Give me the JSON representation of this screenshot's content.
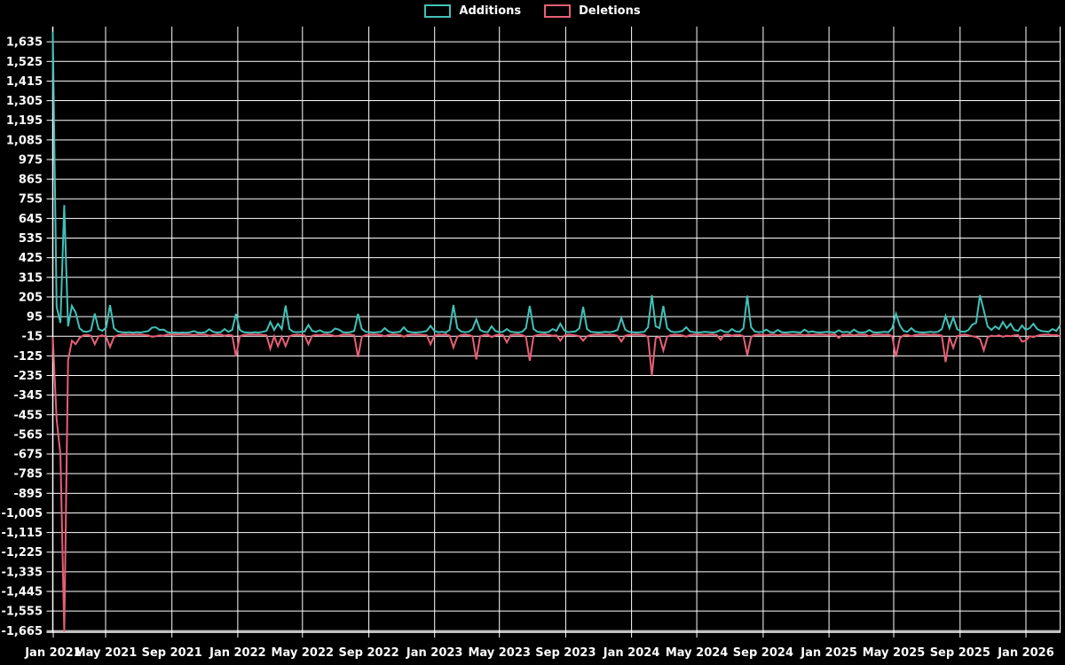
{
  "legend": {
    "items": [
      {
        "label": "Additions",
        "color": "#41c1b8"
      },
      {
        "label": "Deletions",
        "color": "#e85f75"
      }
    ]
  },
  "chart_data": {
    "type": "line",
    "title": "",
    "xlabel": "",
    "ylabel": "",
    "background": "#000000",
    "grid_color": "#ffffff",
    "text_color": "#ffffff",
    "grid": true,
    "legend_position": "top",
    "x_unit": "week",
    "x_range": [
      "Jan 2021",
      "Feb 2026"
    ],
    "ylim": [
      -1665,
      1635
    ],
    "y_tick_step": 110,
    "x_ticks": [
      "Jan 2021",
      "May 2021",
      "Sep 2021",
      "Jan 2022",
      "May 2022",
      "Sep 2022",
      "Jan 2023",
      "May 2023",
      "Sep 2023",
      "Jan 2024",
      "May 2024",
      "Sep 2024",
      "Jan 2025",
      "May 2025",
      "Sep 2025",
      "Jan 2026"
    ],
    "y_ticks": [
      "1,635",
      "1,525",
      "1,415",
      "1,305",
      "1,195",
      "1,085",
      "975",
      "865",
      "755",
      "645",
      "535",
      "425",
      "315",
      "205",
      "95",
      "-15",
      "-125",
      "-235",
      "-345",
      "-455",
      "-565",
      "-675",
      "-785",
      "-895",
      "-1,005",
      "-1,115",
      "-1,225",
      "-1,335",
      "-1,445",
      "-1,555",
      "-1,665"
    ],
    "series": [
      {
        "name": "Additions",
        "color": "#41c1b8",
        "values": [
          1690,
          150,
          60,
          720,
          40,
          155,
          117,
          30,
          12,
          10,
          18,
          112,
          25,
          15,
          35,
          160,
          30,
          12,
          8,
          6,
          8,
          5,
          8,
          6,
          10,
          14,
          33,
          35,
          20,
          22,
          8,
          5,
          6,
          4,
          6,
          5,
          8,
          14,
          6,
          5,
          8,
          24,
          10,
          6,
          8,
          25,
          10,
          20,
          110,
          20,
          8,
          6,
          5,
          8,
          6,
          10,
          15,
          65,
          20,
          55,
          25,
          157,
          25,
          10,
          8,
          10,
          12,
          48,
          15,
          10,
          18,
          8,
          6,
          10,
          28,
          22,
          8,
          6,
          8,
          15,
          110,
          25,
          10,
          8,
          6,
          8,
          10,
          30,
          12,
          6,
          8,
          10,
          35,
          12,
          8,
          6,
          8,
          10,
          15,
          43,
          15,
          8,
          10,
          6,
          20,
          160,
          30,
          12,
          8,
          10,
          25,
          80,
          20,
          10,
          8,
          40,
          15,
          8,
          10,
          25,
          10,
          8,
          6,
          10,
          30,
          155,
          25,
          10,
          8,
          6,
          10,
          25,
          15,
          55,
          18,
          8,
          10,
          12,
          30,
          150,
          25,
          10,
          8,
          6,
          8,
          10,
          8,
          12,
          20,
          88,
          22,
          10,
          8,
          6,
          8,
          10,
          35,
          215,
          40,
          30,
          155,
          30,
          12,
          8,
          10,
          15,
          35,
          12,
          8,
          6,
          8,
          10,
          8,
          6,
          10,
          20,
          10,
          8,
          25,
          12,
          10,
          30,
          212,
          35,
          12,
          8,
          10,
          22,
          8,
          6,
          20,
          8,
          6,
          8,
          10,
          8,
          6,
          22,
          8,
          12,
          8,
          6,
          8,
          10,
          8,
          6,
          18,
          8,
          10,
          6,
          22,
          8,
          6,
          8,
          20,
          8,
          6,
          8,
          10,
          8,
          30,
          110,
          45,
          15,
          10,
          30,
          12,
          8,
          6,
          8,
          10,
          8,
          10,
          25,
          98,
          30,
          90,
          25,
          12,
          10,
          20,
          50,
          60,
          215,
          130,
          40,
          20,
          40,
          25,
          65,
          30,
          55,
          20,
          15,
          45,
          20,
          30,
          55,
          25,
          15,
          12,
          10,
          25,
          15,
          45
        ]
      },
      {
        "name": "Deletions",
        "color": "#e85f75",
        "values": [
          -20,
          -480,
          -680,
          -1672,
          -150,
          -40,
          -60,
          -25,
          -10,
          -8,
          -12,
          -60,
          -15,
          -10,
          -20,
          -75,
          -20,
          -10,
          -6,
          -5,
          -6,
          -5,
          -6,
          -5,
          -8,
          -10,
          -18,
          -15,
          -10,
          -12,
          -6,
          -5,
          -5,
          -4,
          -5,
          -5,
          -6,
          -8,
          -5,
          -5,
          -6,
          -12,
          -8,
          -5,
          -6,
          -12,
          -8,
          -10,
          -128,
          -15,
          -8,
          -6,
          -5,
          -6,
          -5,
          -8,
          -10,
          -85,
          -15,
          -70,
          -18,
          -70,
          -15,
          -8,
          -6,
          -8,
          -10,
          -60,
          -12,
          -8,
          -10,
          -6,
          -5,
          -8,
          -15,
          -12,
          -6,
          -5,
          -6,
          -10,
          -132,
          -18,
          -8,
          -6,
          -5,
          -6,
          -8,
          -15,
          -8,
          -5,
          -6,
          -8,
          -18,
          -8,
          -6,
          -5,
          -6,
          -8,
          -10,
          -60,
          -12,
          -6,
          -8,
          -5,
          -12,
          -78,
          -18,
          -8,
          -6,
          -8,
          -15,
          -145,
          -15,
          -8,
          -6,
          -20,
          -10,
          -6,
          -8,
          -50,
          -8,
          -6,
          -5,
          -8,
          -18,
          -152,
          -15,
          -8,
          -6,
          -5,
          -8,
          -12,
          -10,
          -40,
          -12,
          -6,
          -8,
          -10,
          -15,
          -40,
          -15,
          -8,
          -6,
          -5,
          -6,
          -8,
          -6,
          -8,
          -12,
          -45,
          -12,
          -8,
          -6,
          -5,
          -6,
          -8,
          -20,
          -235,
          -25,
          -18,
          -95,
          -18,
          -8,
          -6,
          -8,
          -10,
          -18,
          -8,
          -6,
          -5,
          -6,
          -8,
          -6,
          -5,
          -8,
          -35,
          -8,
          -6,
          -12,
          -8,
          -8,
          -15,
          -122,
          -20,
          -8,
          -6,
          -8,
          -10,
          -6,
          -5,
          -10,
          -6,
          -5,
          -6,
          -8,
          -6,
          -5,
          -10,
          -6,
          -8,
          -6,
          -5,
          -6,
          -8,
          -6,
          -5,
          -25,
          -6,
          -8,
          -5,
          -10,
          -6,
          -5,
          -6,
          -15,
          -6,
          -5,
          -6,
          -8,
          -6,
          -15,
          -132,
          -25,
          -10,
          -8,
          -15,
          -8,
          -6,
          -5,
          -6,
          -8,
          -6,
          -8,
          -12,
          -160,
          -20,
          -80,
          -15,
          -8,
          -6,
          -10,
          -15,
          -20,
          -30,
          -94,
          -20,
          -12,
          -15,
          -10,
          -18,
          -12,
          -15,
          -10,
          -8,
          -45,
          -40,
          -15,
          -20,
          -12,
          -8,
          -6,
          -5,
          -10,
          -8,
          -15
        ]
      }
    ]
  }
}
